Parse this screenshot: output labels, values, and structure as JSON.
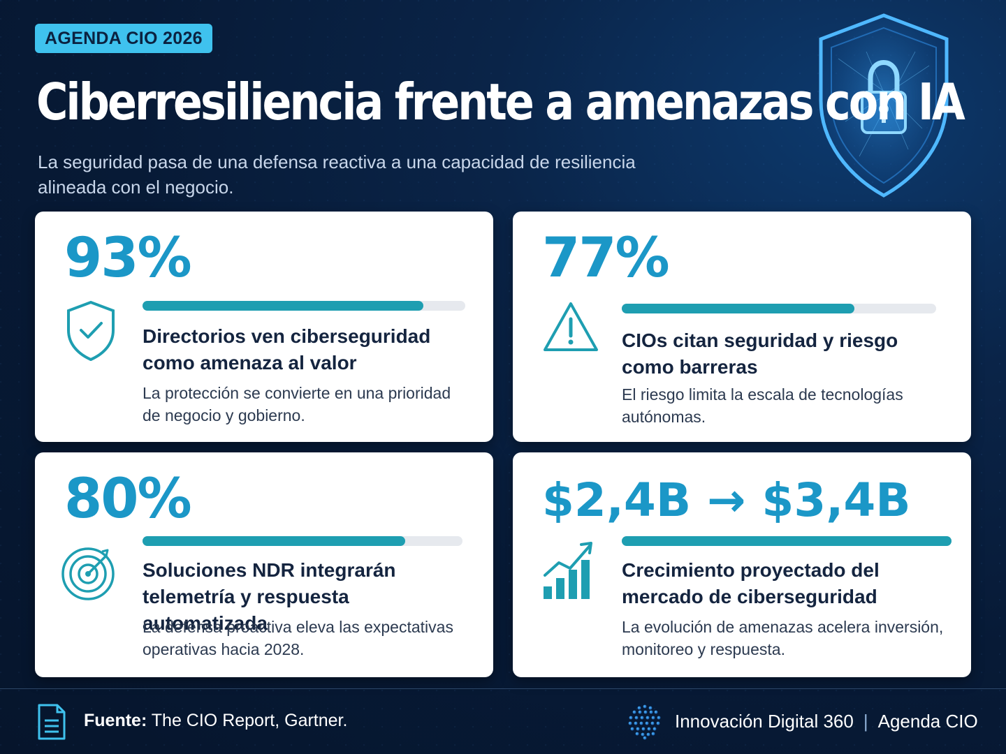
{
  "badge": "AGENDA CIO 2026",
  "title": "Ciberresiliencia frente a amenazas con IA",
  "subtitle": "La seguridad pasa de una defensa reactiva a una capacidad de resiliencia alineada con el negocio.",
  "colors": {
    "background": "#071a36",
    "accent": "#3fc2ee",
    "stat": "#1b97c7",
    "bar": "#1e9eb1",
    "card": "#ffffff"
  },
  "cards": [
    {
      "stat": "93%",
      "progress": 0.87,
      "icon": "shield-check-icon",
      "heading": "Directorios ven ciberseguridad como amenaza al valor",
      "description": "La protección se convierte en una prioridad de negocio y gobierno."
    },
    {
      "stat": "77%",
      "progress": 0.74,
      "icon": "warning-icon",
      "heading": "CIOs citan seguridad y riesgo como barreras",
      "description": "El riesgo limita la escala de tecnologías autónomas."
    },
    {
      "stat": "80%",
      "progress": 0.82,
      "icon": "target-icon",
      "heading": "Soluciones NDR integrarán telemetría y respuesta automatizada",
      "description": "La defensa proactiva eleva las expectativas operativas hacia 2028."
    },
    {
      "stat": "$2,4B → $3,4B",
      "progress": 1.0,
      "icon": "growth-chart-icon",
      "heading": "Crecimiento proyectado del mercado de ciberseguridad",
      "description": "La evolución de amenazas acelera inversión, monitoreo y respuesta."
    }
  ],
  "footer": {
    "source_label": "Fuente:",
    "source_text": " The CIO Report, Gartner.",
    "brand": "Innovación Digital 360",
    "separator": "|",
    "section": "Agenda CIO"
  }
}
